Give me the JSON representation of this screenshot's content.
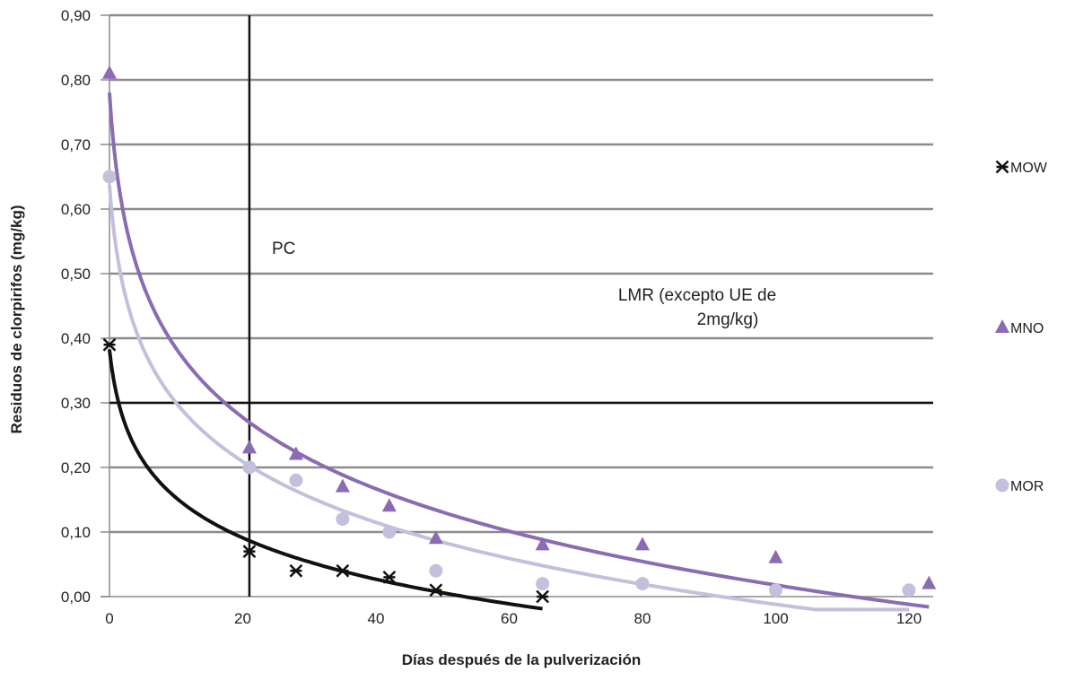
{
  "chart_data": {
    "type": "scatter",
    "xlabel": "Días después de la pulverización",
    "ylabel": "Residuos de clorpirifos (mg/kg)",
    "xlim": [
      0,
      125
    ],
    "ylim": [
      0,
      0.9
    ],
    "x_ticks": [
      0,
      20,
      40,
      60,
      80,
      100,
      120
    ],
    "x_tick_labels": [
      "0",
      "20",
      "40",
      "60",
      "80",
      "100",
      "120"
    ],
    "y_ticks": [
      0,
      0.1,
      0.2,
      0.3,
      0.4,
      0.5,
      0.6,
      0.7,
      0.8,
      0.9
    ],
    "y_tick_labels": [
      "0,00",
      "0,10",
      "0,20",
      "0,30",
      "0,40",
      "0,50",
      "0,60",
      "0,70",
      "0,80",
      "0,90"
    ],
    "grid": "horizontal",
    "legend_position": "right",
    "series": [
      {
        "name": "MOW",
        "marker": "star",
        "color": "#111111",
        "x": [
          0,
          21,
          28,
          35,
          42,
          49,
          65
        ],
        "y": [
          0.39,
          0.07,
          0.04,
          0.04,
          0.03,
          0.01,
          0.0
        ],
        "trendline": "logarithmic",
        "trend_color": "#111111"
      },
      {
        "name": "MNO",
        "marker": "triangle",
        "color": "#8b6bb1",
        "x": [
          0,
          21,
          28,
          35,
          42,
          49,
          65,
          80,
          100,
          123
        ],
        "y": [
          0.81,
          0.23,
          0.22,
          0.17,
          0.14,
          0.09,
          0.08,
          0.08,
          0.06,
          0.02
        ],
        "trendline": "logarithmic",
        "trend_color": "#8b6bb1"
      },
      {
        "name": "MOR",
        "marker": "circle",
        "color": "#c3c0dc",
        "x": [
          0,
          21,
          28,
          35,
          42,
          49,
          65,
          80,
          100,
          120
        ],
        "y": [
          0.65,
          0.2,
          0.18,
          0.12,
          0.1,
          0.04,
          0.02,
          0.02,
          0.01,
          0.01
        ],
        "trendline": "logarithmic",
        "trend_color": "#c3c0dc"
      }
    ],
    "reference_lines": [
      {
        "orientation": "vertical",
        "value": 21,
        "label": "PC"
      },
      {
        "orientation": "horizontal",
        "value": 0.3,
        "label": "LMR (excepto UE de 2mg/kg)"
      }
    ]
  },
  "annotations": {
    "pc": "PC",
    "lmr_line1": "LMR (excepto UE de",
    "lmr_line2": "2mg/kg)"
  }
}
